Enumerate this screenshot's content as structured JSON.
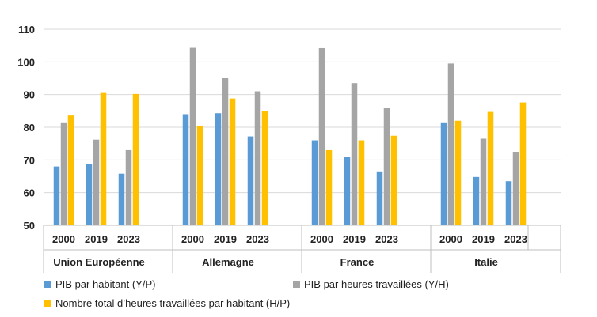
{
  "chart_data": {
    "type": "bar",
    "title": "",
    "xlabel": "",
    "ylabel": "",
    "ylim": [
      50,
      110
    ],
    "yticks": [
      50,
      60,
      70,
      80,
      90,
      100,
      110
    ],
    "grid": true,
    "legend_position": "bottom",
    "groups": [
      {
        "label": "Union Européenne",
        "years": [
          "2000",
          "2019",
          "2023"
        ]
      },
      {
        "label": "Allemagne",
        "years": [
          "2000",
          "2019",
          "2023"
        ]
      },
      {
        "label": "France",
        "years": [
          "2000",
          "2019",
          "2023"
        ]
      },
      {
        "label": "Italie",
        "years": [
          "2000",
          "2019",
          "2023"
        ]
      }
    ],
    "series": [
      {
        "name": "PIB par habitant (Y/P)",
        "color": "#5B9BD5",
        "values": [
          68,
          68.8,
          65.8,
          84,
          84.3,
          77.2,
          76,
          71,
          66.5,
          81.5,
          64.8,
          63.5
        ]
      },
      {
        "name": "PIB par heures travaillées (Y/H)",
        "color": "#A5A5A5",
        "values": [
          81.5,
          76.2,
          73,
          104.3,
          95,
          91,
          104.2,
          93.5,
          86,
          99.5,
          76.5,
          72.5
        ]
      },
      {
        "name": "Nombre total d’heures travaillées par habitant (H/P)",
        "color": "#FFC000",
        "values": [
          83.6,
          90.5,
          90.2,
          80.5,
          88.8,
          85,
          73,
          76,
          77.4,
          82,
          84.7,
          87.6
        ]
      }
    ]
  }
}
